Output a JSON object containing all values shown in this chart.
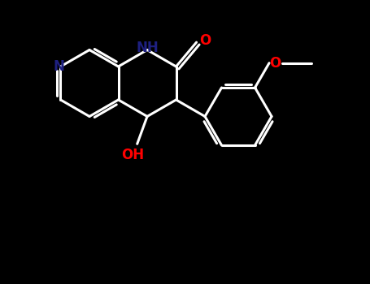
{
  "background_color": "#000000",
  "bond_color": "#ffffff",
  "nitrogen_color": "#1e2080",
  "oxygen_color": "#ff0000",
  "bond_width": 2.2,
  "font_size_atom": 11,
  "figsize": [
    4.55,
    3.5
  ],
  "dpi": 100,
  "xlim": [
    0,
    9.1
  ],
  "ylim": [
    0,
    7.0
  ]
}
